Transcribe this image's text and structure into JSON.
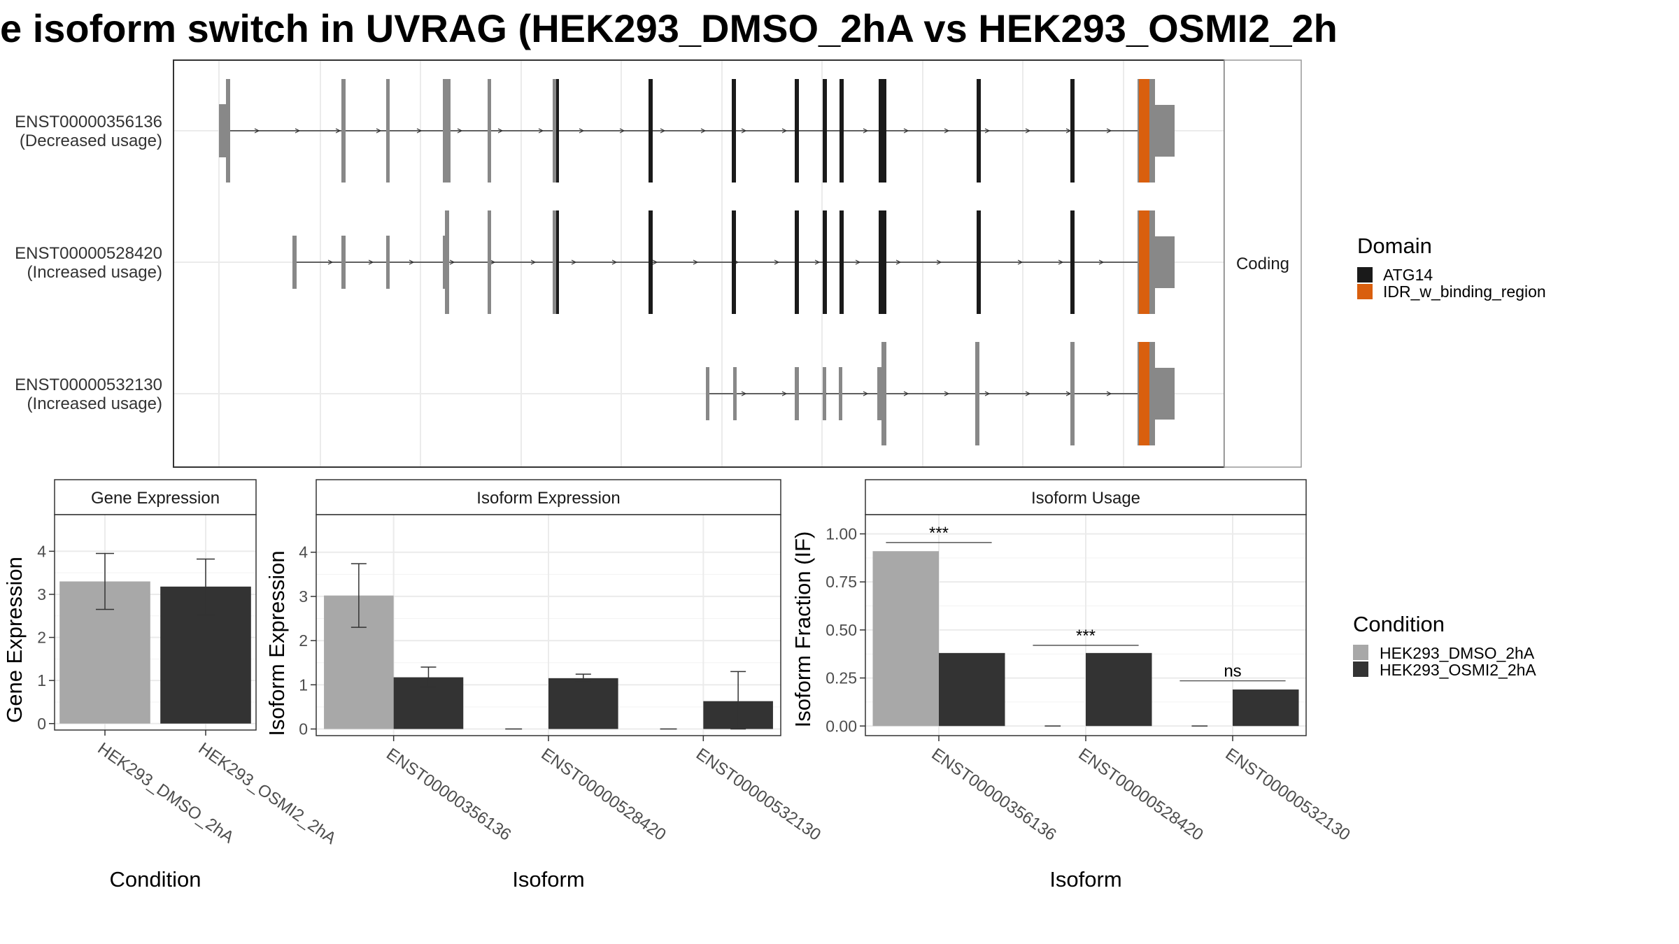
{
  "title": "e isoform switch in UVRAG (HEK293_DMSO_2hA vs HEK293_OSMI2_2h",
  "colors": {
    "dmso": "#a8a8a8",
    "osmi2": "#333333",
    "atg14": "#1a1a1a",
    "idr": "#d95f0e",
    "noncoding_exon": "#888888",
    "strip_border": "#999999"
  },
  "structure": {
    "facet_label": "Coding",
    "isoforms": [
      {
        "id": "ENST00000356136",
        "usage": "(Decreased usage)"
      },
      {
        "id": "ENST00000528420",
        "usage": "(Increased usage)"
      },
      {
        "id": "ENST00000532130",
        "usage": "(Increased usage)"
      }
    ],
    "legend": {
      "title": "Domain",
      "entries": [
        {
          "label": "ATG14",
          "color": "#1a1a1a"
        },
        {
          "label": "IDR_w_binding_region",
          "color": "#d95f0e"
        }
      ]
    }
  },
  "chart_data": [
    {
      "type": "bar",
      "title": "Gene Expression",
      "xlabel": "Condition",
      "ylabel": "Gene Expression",
      "ylim": [
        -0.15,
        4.85
      ],
      "yticks": [
        0,
        1,
        2,
        3,
        4
      ],
      "categories": [
        "HEK293_DMSO_2hA",
        "HEK293_OSMI2_2hA"
      ],
      "values": [
        3.3,
        3.18
      ],
      "errors": [
        [
          2.65,
          3.95
        ],
        [
          2.52,
          3.82
        ]
      ]
    },
    {
      "type": "bar",
      "title": "Isoform Expression",
      "xlabel": "Isoform",
      "ylabel": "Isoform Expression",
      "ylim": [
        -0.15,
        4.85
      ],
      "yticks": [
        0,
        1,
        2,
        3,
        4
      ],
      "categories": [
        "ENST00000356136",
        "ENST00000528420",
        "ENST00000532130"
      ],
      "series": [
        {
          "name": "HEK293_DMSO_2hA",
          "values": [
            3.02,
            0,
            0
          ],
          "errors": [
            [
              2.3,
              3.74
            ],
            [
              0,
              0
            ],
            [
              0,
              0
            ]
          ]
        },
        {
          "name": "HEK293_OSMI2_2hA",
          "values": [
            1.17,
            1.15,
            0.63
          ],
          "errors": [
            [
              0.95,
              1.4
            ],
            [
              1.07,
              1.24
            ],
            [
              0,
              1.3
            ]
          ]
        }
      ]
    },
    {
      "type": "bar",
      "title": "Isoform Usage",
      "xlabel": "Isoform",
      "ylabel": "Isoform Fraction (IF)",
      "ylim": [
        -0.05,
        1.1
      ],
      "yticks": [
        0,
        0.25,
        0.5,
        0.75,
        1.0
      ],
      "ytick_labels": [
        "0.00",
        "0.25",
        "0.50",
        "0.75",
        "1.00"
      ],
      "categories": [
        "ENST00000356136",
        "ENST00000528420",
        "ENST00000532130"
      ],
      "series": [
        {
          "name": "HEK293_DMSO_2hA",
          "values": [
            0.91,
            0,
            0
          ]
        },
        {
          "name": "HEK293_OSMI2_2hA",
          "values": [
            0.38,
            0.38,
            0.19
          ]
        }
      ],
      "significance": [
        {
          "label": "***",
          "y": 0.955
        },
        {
          "label": "***",
          "y": 0.42
        },
        {
          "label": "ns",
          "y": 0.235
        }
      ]
    }
  ],
  "condition_legend": {
    "title": "Condition",
    "entries": [
      {
        "label": "HEK293_DMSO_2hA",
        "color": "#a8a8a8"
      },
      {
        "label": "HEK293_OSMI2_2hA",
        "color": "#333333"
      }
    ]
  }
}
